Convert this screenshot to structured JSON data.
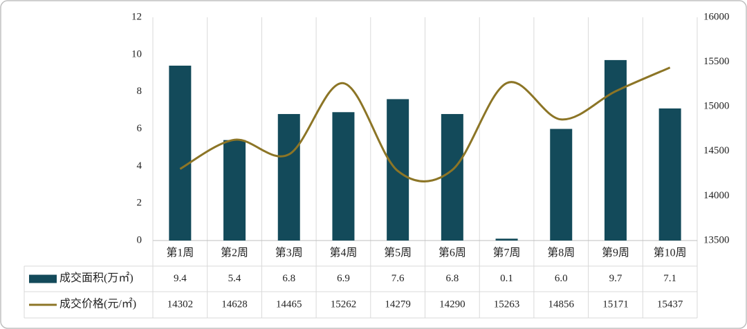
{
  "chart_data": {
    "type": "bar-line-table",
    "categories": [
      "第1周",
      "第2周",
      "第3周",
      "第4周",
      "第5周",
      "第6周",
      "第7周",
      "第8周",
      "第9周",
      "第10周"
    ],
    "series": [
      {
        "name": "成交面积(万㎡)",
        "color": "#134a5a",
        "type": "bar",
        "values": [
          9.4,
          5.4,
          6.8,
          6.9,
          7.6,
          6.8,
          0.1,
          6.0,
          9.7,
          7.1
        ],
        "value_labels": [
          "9.4",
          "5.4",
          "6.8",
          "6.9",
          "7.6",
          "6.8",
          "0.1",
          "6.0",
          "9.7",
          "7.1"
        ]
      },
      {
        "name": "成交价格(元/㎡)",
        "color": "#8c7526",
        "type": "line",
        "axis": "y2",
        "values": [
          14302,
          14628,
          14465,
          15262,
          14279,
          14290,
          15263,
          14856,
          15171,
          15437
        ]
      }
    ],
    "ylim": [
      0,
      12
    ],
    "yticks": [
      0,
      2,
      4,
      6,
      8,
      10,
      12
    ],
    "y2lim": [
      13500,
      16000
    ],
    "y2ticks": [
      13500,
      14000,
      14500,
      15000,
      15500,
      16000
    ]
  }
}
